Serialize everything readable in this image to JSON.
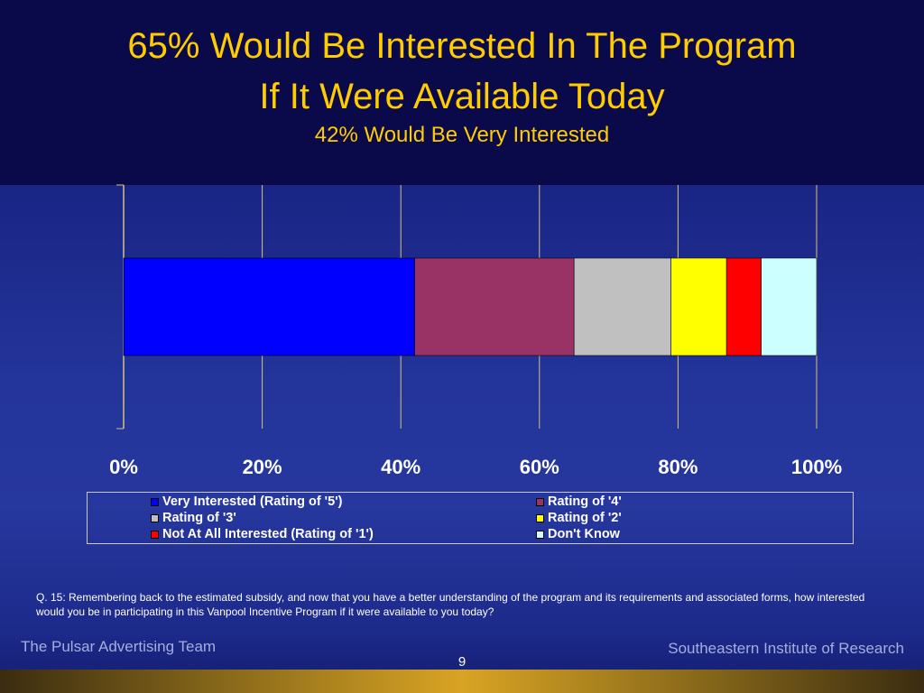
{
  "slide": {
    "title_line1": "65% Would Be Interested In The Program",
    "title_line2": "If It Were Available Today",
    "subtitle": "42% Would Be Very Interested",
    "question_note": "Q. 15: Remembering back to the estimated subsidy, and now that you have a better understanding of the program and its requirements and associated forms, how interested would you be in participating in this Vanpool Incentive Program if it were available to you today?",
    "footer_left": "The Pulsar Advertising Team",
    "footer_right": "Southeastern Institute of Research",
    "page_number": "9"
  },
  "chart_data": {
    "type": "bar",
    "orientation": "horizontal",
    "stacked": true,
    "categories": [
      ""
    ],
    "xlim": [
      0,
      100
    ],
    "xticks": [
      "0%",
      "20%",
      "40%",
      "60%",
      "80%",
      "100%"
    ],
    "grid": true,
    "legend_position": "bottom",
    "series": [
      {
        "name": "Very Interested (Rating of '5')",
        "values": [
          42
        ],
        "color": "#0000ff"
      },
      {
        "name": "Rating of '4'",
        "values": [
          23
        ],
        "color": "#993366"
      },
      {
        "name": "Rating of '3'",
        "values": [
          14
        ],
        "color": "#c0c0c0"
      },
      {
        "name": "Rating of '2'",
        "values": [
          8
        ],
        "color": "#ffff00"
      },
      {
        "name": "Not At All Interested (Rating of '1')",
        "values": [
          5
        ],
        "color": "#ff0000"
      },
      {
        "name": "Don't Know",
        "values": [
          8
        ],
        "color": "#ccffff"
      }
    ]
  }
}
